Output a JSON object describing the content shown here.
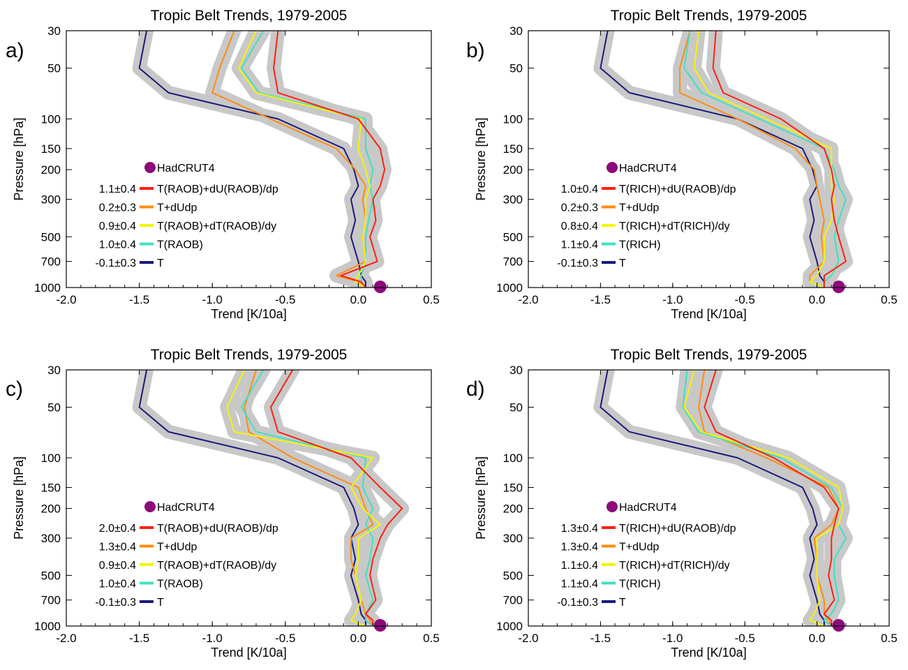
{
  "chart_data": [
    {
      "type": "line",
      "panel_label": "a)",
      "title": "Tropic Belt Trends, 1979-2005",
      "xlabel": "Trend [K/10a]",
      "ylabel": "Pressure [hPa]",
      "xlim": [
        -2.0,
        0.5
      ],
      "ylim": [
        1000,
        30
      ],
      "y_scale": "log",
      "x_ticks": [
        "-2.0",
        "-1.5",
        "-1.0",
        "-0.5",
        "0.0",
        "0.5"
      ],
      "y_ticks": [
        30,
        50,
        100,
        150,
        200,
        300,
        500,
        700,
        1000
      ],
      "pressure_levels": [
        30,
        50,
        70,
        100,
        150,
        200,
        250,
        300,
        400,
        500,
        700,
        850,
        925,
        1000
      ],
      "legend_placement": "center-left",
      "marker": {
        "name": "HadCRUT4",
        "x": 0.15,
        "y": 1000,
        "color": "#8b0a7a"
      },
      "series": [
        {
          "name": "T(RAOB)+dU(RAOB)/dp",
          "value_label": "1.1±0.4",
          "color": "#ff2010",
          "values": [
            -0.55,
            -0.58,
            -0.55,
            0.0,
            0.15,
            0.18,
            0.15,
            0.1,
            0.12,
            0.08,
            0.13,
            -0.12,
            0.02,
            0.05
          ]
        },
        {
          "name": "T+dUdp",
          "value_label": "0.2±0.3",
          "color": "#ff8c10",
          "values": [
            -0.85,
            -0.95,
            -1.0,
            -0.6,
            -0.15,
            -0.02,
            0.05,
            0.03,
            0.05,
            0.03,
            0.05,
            -0.15,
            0.0,
            0.05
          ]
        },
        {
          "name": "T(RAOB)+dT(RAOB)/dy",
          "value_label": "0.9±0.4",
          "color": "#f5f500",
          "values": [
            -0.7,
            -0.82,
            -0.7,
            0.02,
            0.0,
            0.05,
            0.08,
            0.05,
            0.05,
            0.03,
            0.05,
            0.0,
            -0.02,
            0.05
          ]
        },
        {
          "name": "T(RAOB)",
          "value_label": "1.0±0.4",
          "color": "#40e0c0",
          "values": [
            -0.65,
            -0.8,
            -0.68,
            0.05,
            0.05,
            0.1,
            0.08,
            0.1,
            0.07,
            0.05,
            0.05,
            0.02,
            0.02,
            0.05
          ]
        },
        {
          "name": "T",
          "value_label": "-0.1±0.3",
          "color": "#1a1a7a",
          "values": [
            -1.45,
            -1.5,
            -1.3,
            -0.55,
            -0.1,
            -0.03,
            0.0,
            -0.05,
            -0.02,
            -0.05,
            0.0,
            0.02,
            0.05,
            0.05
          ]
        }
      ]
    },
    {
      "type": "line",
      "panel_label": "b)",
      "title": "Tropic Belt Trends, 1979-2005",
      "xlabel": "Trend [K/10a]",
      "ylabel": "Pressure [hPa]",
      "xlim": [
        -2.0,
        0.5
      ],
      "ylim": [
        1000,
        30
      ],
      "y_scale": "log",
      "x_ticks": [
        "-2.0",
        "-1.5",
        "-1.0",
        "-0.5",
        "0.0",
        "0.5"
      ],
      "y_ticks": [
        30,
        50,
        100,
        150,
        200,
        300,
        500,
        700,
        1000
      ],
      "pressure_levels": [
        30,
        50,
        70,
        100,
        150,
        200,
        250,
        300,
        400,
        500,
        700,
        850,
        925,
        1000
      ],
      "legend_placement": "center-left",
      "marker": {
        "name": "HadCRUT4",
        "x": 0.15,
        "y": 1000,
        "color": "#8b0a7a"
      },
      "series": [
        {
          "name": "T(RICH)+dU(RAOB)/dp",
          "value_label": "1.0±0.4",
          "color": "#ff2010",
          "values": [
            -0.7,
            -0.72,
            -0.65,
            -0.25,
            0.05,
            0.1,
            0.12,
            0.1,
            0.12,
            0.15,
            0.2,
            0.05,
            0.05,
            0.05
          ]
        },
        {
          "name": "T+dUdp",
          "value_label": "0.2±0.3",
          "color": "#ff8c10",
          "values": [
            -0.88,
            -0.95,
            -0.95,
            -0.55,
            -0.15,
            -0.02,
            0.0,
            0.02,
            0.05,
            0.03,
            0.05,
            -0.05,
            -0.05,
            0.05
          ]
        },
        {
          "name": "T(RICH)+dT(RICH)/dy",
          "value_label": "0.8±0.4",
          "color": "#f5f500",
          "values": [
            -0.82,
            -0.85,
            -0.75,
            -0.35,
            0.1,
            0.1,
            0.1,
            0.12,
            0.1,
            0.05,
            0.05,
            0.0,
            -0.05,
            0.05
          ]
        },
        {
          "name": "T(RICH)",
          "value_label": "1.1±0.4",
          "color": "#40e0c0",
          "values": [
            -0.88,
            -0.92,
            -0.8,
            -0.4,
            0.05,
            0.12,
            0.15,
            0.2,
            0.15,
            0.12,
            0.15,
            0.1,
            0.05,
            0.05
          ]
        },
        {
          "name": "T",
          "value_label": "-0.1±0.3",
          "color": "#1a1a7a",
          "values": [
            -1.45,
            -1.5,
            -1.3,
            -0.55,
            -0.1,
            -0.03,
            0.0,
            -0.05,
            -0.02,
            -0.05,
            0.0,
            0.02,
            0.05,
            0.05
          ]
        }
      ]
    },
    {
      "type": "line",
      "panel_label": "c)",
      "title": "Tropic Belt Trends, 1979-2005",
      "xlabel": "Trend [K/10a]",
      "ylabel": "Pressure [hPa]",
      "xlim": [
        -2.0,
        0.5
      ],
      "ylim": [
        1000,
        30
      ],
      "y_scale": "log",
      "x_ticks": [
        "-2.0",
        "-1.5",
        "-1.0",
        "-0.5",
        "0.0",
        "0.5"
      ],
      "y_ticks": [
        30,
        50,
        100,
        150,
        200,
        300,
        500,
        700,
        1000
      ],
      "pressure_levels": [
        30,
        50,
        70,
        100,
        150,
        200,
        250,
        300,
        400,
        500,
        700,
        850,
        925,
        1000
      ],
      "legend_placement": "center-left",
      "marker": {
        "name": "HadCRUT4",
        "x": 0.15,
        "y": 1000,
        "color": "#8b0a7a"
      },
      "series": [
        {
          "name": "T(RAOB)+dU(RAOB)/dp",
          "value_label": "2.0±0.4",
          "color": "#ff2010",
          "values": [
            -0.45,
            -0.6,
            -0.55,
            -0.05,
            0.15,
            0.3,
            0.2,
            0.15,
            0.1,
            0.08,
            0.12,
            0.05,
            0.1,
            0.1
          ]
        },
        {
          "name": "T+dUdp",
          "value_label": "1.3±0.4",
          "color": "#ff8c10",
          "values": [
            -0.7,
            -0.78,
            -0.75,
            -0.45,
            0.0,
            0.05,
            0.1,
            -0.05,
            -0.05,
            -0.02,
            0.02,
            0.05,
            0.08,
            0.1
          ]
        },
        {
          "name": "T(RAOB)+dT(RAOB)/dy",
          "value_label": "0.9±0.4",
          "color": "#f5f500",
          "values": [
            -0.78,
            -0.9,
            -0.85,
            0.1,
            -0.05,
            0.03,
            0.15,
            0.0,
            0.0,
            -0.02,
            0.02,
            -0.02,
            -0.05,
            0.05
          ]
        },
        {
          "name": "T(RAOB)",
          "value_label": "1.0±0.4",
          "color": "#40e0c0",
          "values": [
            -0.65,
            -0.8,
            -0.7,
            0.05,
            0.03,
            0.1,
            0.05,
            0.1,
            0.08,
            0.05,
            0.1,
            0.05,
            0.05,
            0.1
          ]
        },
        {
          "name": "T",
          "value_label": "-0.1±0.3",
          "color": "#1a1a7a",
          "values": [
            -1.45,
            -1.5,
            -1.3,
            -0.55,
            -0.1,
            -0.03,
            0.0,
            -0.05,
            -0.02,
            -0.05,
            0.0,
            0.02,
            0.05,
            0.05
          ]
        }
      ]
    },
    {
      "type": "line",
      "panel_label": "d)",
      "title": "Tropic Belt Trends, 1979-2005",
      "xlabel": "Trend [K/10a]",
      "ylabel": "Pressure [hPa]",
      "xlim": [
        -2.0,
        0.5
      ],
      "ylim": [
        1000,
        30
      ],
      "y_scale": "log",
      "x_ticks": [
        "-2.0",
        "-1.5",
        "-1.0",
        "-0.5",
        "0.0",
        "0.5"
      ],
      "y_ticks": [
        30,
        50,
        100,
        150,
        200,
        300,
        500,
        700,
        1000
      ],
      "pressure_levels": [
        30,
        50,
        70,
        100,
        150,
        200,
        250,
        300,
        400,
        500,
        700,
        850,
        925,
        1000
      ],
      "legend_placement": "center-left",
      "marker": {
        "name": "HadCRUT4",
        "x": 0.15,
        "y": 1000,
        "color": "#8b0a7a"
      },
      "series": [
        {
          "name": "T(RICH)+dU(RAOB)/dp",
          "value_label": "1.3±0.4",
          "color": "#ff2010",
          "values": [
            -0.7,
            -0.78,
            -0.7,
            -0.3,
            0.05,
            0.15,
            0.12,
            0.1,
            0.1,
            0.08,
            0.12,
            0.05,
            0.1,
            0.1
          ]
        },
        {
          "name": "T+dUdp",
          "value_label": "1.3±0.4",
          "color": "#ff8c10",
          "values": [
            -0.78,
            -0.82,
            -0.78,
            -0.35,
            0.08,
            0.15,
            0.1,
            -0.02,
            0.0,
            0.0,
            0.05,
            0.05,
            0.08,
            0.1
          ]
        },
        {
          "name": "T(RICH)+dT(RICH)/dy",
          "value_label": "1.1±0.4",
          "color": "#f5f500",
          "values": [
            -0.85,
            -0.92,
            -0.8,
            -0.2,
            0.15,
            0.18,
            0.15,
            0.0,
            0.0,
            0.0,
            0.02,
            -0.02,
            -0.05,
            0.05
          ]
        },
        {
          "name": "T(RICH)",
          "value_label": "1.1±0.4",
          "color": "#40e0c0",
          "values": [
            -0.9,
            -0.93,
            -0.82,
            -0.25,
            0.1,
            0.18,
            0.15,
            0.2,
            0.12,
            0.12,
            0.15,
            0.1,
            0.05,
            0.1
          ]
        },
        {
          "name": "T",
          "value_label": "-0.1±0.3",
          "color": "#1a1a7a",
          "values": [
            -1.45,
            -1.5,
            -1.3,
            -0.55,
            -0.1,
            -0.03,
            0.0,
            -0.05,
            -0.02,
            -0.05,
            0.0,
            0.02,
            0.05,
            0.05
          ]
        }
      ]
    }
  ]
}
